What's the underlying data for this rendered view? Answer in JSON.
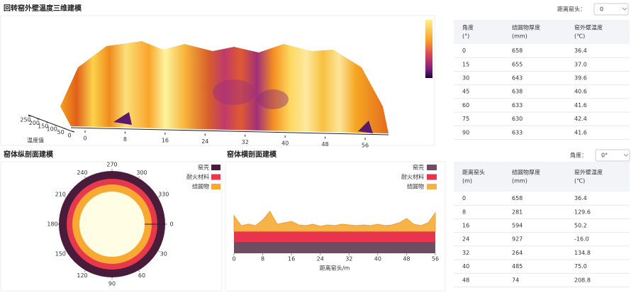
{
  "header": {
    "title": "回转窑外壁温度三维建模",
    "distance_label": "距离窑头：",
    "distance_value": "0"
  },
  "chart_data": [
    {
      "type": "surface3d",
      "zlabel": "温度值",
      "xlim": [
        0,
        56
      ],
      "xticks": [
        0,
        8,
        16,
        24,
        32,
        40,
        48,
        56
      ],
      "zlim": [
        0,
        250
      ],
      "zticks": [
        0,
        50,
        100,
        150,
        200,
        250
      ]
    },
    {
      "type": "polar",
      "title": "窑体纵剖面建模",
      "angle_ticks": [
        0,
        30,
        60,
        90,
        120,
        150,
        180,
        210,
        240,
        270,
        300,
        330
      ],
      "series": [
        {
          "name": "窑壳",
          "color": "#4a1c3c"
        },
        {
          "name": "耐火材料",
          "color": "#e8384c"
        },
        {
          "name": "结圆物",
          "color": "#f7a931"
        }
      ]
    },
    {
      "type": "stacked_area",
      "title": "窑体横剖面建模",
      "xlabel": "距离窑头/m",
      "x": [
        0,
        2,
        4,
        6,
        8,
        10,
        12,
        14,
        16,
        18,
        20,
        22,
        24,
        26,
        28,
        30,
        32,
        34,
        36,
        38,
        40,
        42,
        44,
        46,
        48,
        50,
        52,
        54,
        56
      ],
      "xlim": [
        0,
        56
      ],
      "xticks": [
        0,
        8,
        16,
        24,
        32,
        40,
        48,
        56
      ],
      "ylim": [
        0,
        60
      ],
      "series": [
        {
          "name": "窑壳",
          "color": "#6e4c62",
          "values": [
            16,
            16,
            16,
            16,
            16,
            16,
            16,
            16,
            16,
            16,
            16,
            16,
            16,
            16,
            16,
            16,
            16,
            16,
            16,
            16,
            16,
            16,
            16,
            16,
            16,
            16,
            16,
            16,
            16
          ]
        },
        {
          "name": "耐火材料",
          "color": "#e8344c",
          "values": [
            15,
            15,
            15,
            15,
            15,
            15,
            15,
            15,
            15,
            15,
            15,
            15,
            15,
            15,
            15,
            15,
            15,
            15,
            15,
            15,
            15,
            15,
            15,
            15,
            15,
            15,
            15,
            15,
            15
          ]
        },
        {
          "name": "结圆物",
          "color": "#f6b347",
          "values": [
            22,
            8,
            10,
            8,
            16,
            28,
            10,
            12,
            14,
            9,
            8,
            10,
            7,
            9,
            8,
            10,
            9,
            8,
            9,
            8,
            10,
            8,
            9,
            12,
            18,
            10,
            8,
            12,
            26
          ]
        }
      ]
    }
  ],
  "table1": {
    "header": [
      [
        "角度",
        "(°)"
      ],
      [
        "结圆物厚度",
        "(mm)"
      ],
      [
        "窑外壁温度",
        "(℃)"
      ]
    ],
    "rows": [
      [
        "0",
        "658",
        "36.4"
      ],
      [
        "15",
        "655",
        "37.0"
      ],
      [
        "30",
        "643",
        "39.6"
      ],
      [
        "45",
        "638",
        "40.6"
      ],
      [
        "60",
        "633",
        "41.6"
      ],
      [
        "75",
        "630",
        "42.4"
      ],
      [
        "90",
        "633",
        "41.6"
      ]
    ]
  },
  "table2": {
    "angle_label": "角度：",
    "angle_value": "0°",
    "header": [
      [
        "距离窑头",
        "(m)"
      ],
      [
        "结圆物厚度",
        "(mm)"
      ],
      [
        "窑外壁温度",
        "(℃)"
      ]
    ],
    "rows": [
      [
        "0",
        "658",
        "36.4"
      ],
      [
        "8",
        "281",
        "129.6"
      ],
      [
        "16",
        "594",
        "50.2"
      ],
      [
        "24",
        "927",
        "-16.0"
      ],
      [
        "32",
        "264",
        "134.8"
      ],
      [
        "40",
        "485",
        "75.0"
      ],
      [
        "48",
        "74",
        "208.8"
      ]
    ]
  }
}
